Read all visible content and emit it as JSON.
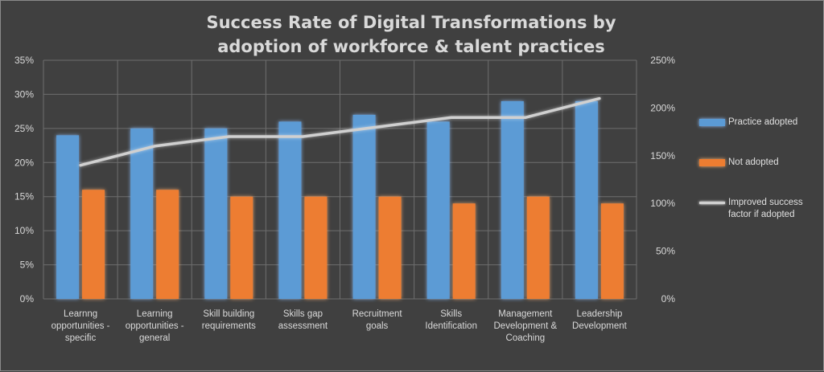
{
  "chart_data": {
    "type": "bar",
    "title_line1": "Success Rate of Digital Transformations by",
    "title_line2": "adoption of workforce & talent practices",
    "categories": [
      "Learnng opportunities - specific",
      "Learning opportunities - general",
      "Skill building requirements",
      "Skills gap assessment",
      "Recruitment goals",
      "Skills Identification",
      "Management Development & Coaching",
      "Leadership Development"
    ],
    "category_lines": [
      [
        "Learnng",
        "opportunities -",
        "specific"
      ],
      [
        "Learning",
        "opportunities -",
        "general"
      ],
      [
        "Skill building",
        "requirements"
      ],
      [
        "Skills gap",
        "assessment"
      ],
      [
        "Recruitment",
        "goals"
      ],
      [
        "Skills",
        "Identification"
      ],
      [
        "Management",
        "Development &",
        "Coaching"
      ],
      [
        "Leadership",
        "Development"
      ]
    ],
    "series": [
      {
        "name": "Practice adopted",
        "type": "bar",
        "axis": "left",
        "color": "#5b9bd5",
        "values": [
          24,
          25,
          25,
          26,
          27,
          26,
          29,
          29
        ]
      },
      {
        "name": "Not adopted",
        "type": "bar",
        "axis": "left",
        "color": "#ed7d31",
        "values": [
          16,
          16,
          15,
          15,
          15,
          14,
          15,
          14
        ]
      },
      {
        "name": "Improved success factor if adopted",
        "type": "line",
        "axis": "right",
        "color": "#d0d0d0",
        "values": [
          140,
          160,
          170,
          170,
          180,
          190,
          190,
          210
        ]
      }
    ],
    "legend_lines": [
      [
        "Practice adopted"
      ],
      [
        "Not adopted"
      ],
      [
        "Improved success",
        "factor if adopted"
      ]
    ],
    "y_left": {
      "min": 0,
      "max": 35,
      "step": 5,
      "ticks": [
        "0%",
        "5%",
        "10%",
        "15%",
        "20%",
        "25%",
        "30%",
        "35%"
      ]
    },
    "y_right": {
      "min": 0,
      "max": 250,
      "step": 50,
      "ticks": [
        "0%",
        "50%",
        "100%",
        "150%",
        "200%",
        "250%"
      ]
    },
    "grid": true,
    "legend_position": "right"
  }
}
